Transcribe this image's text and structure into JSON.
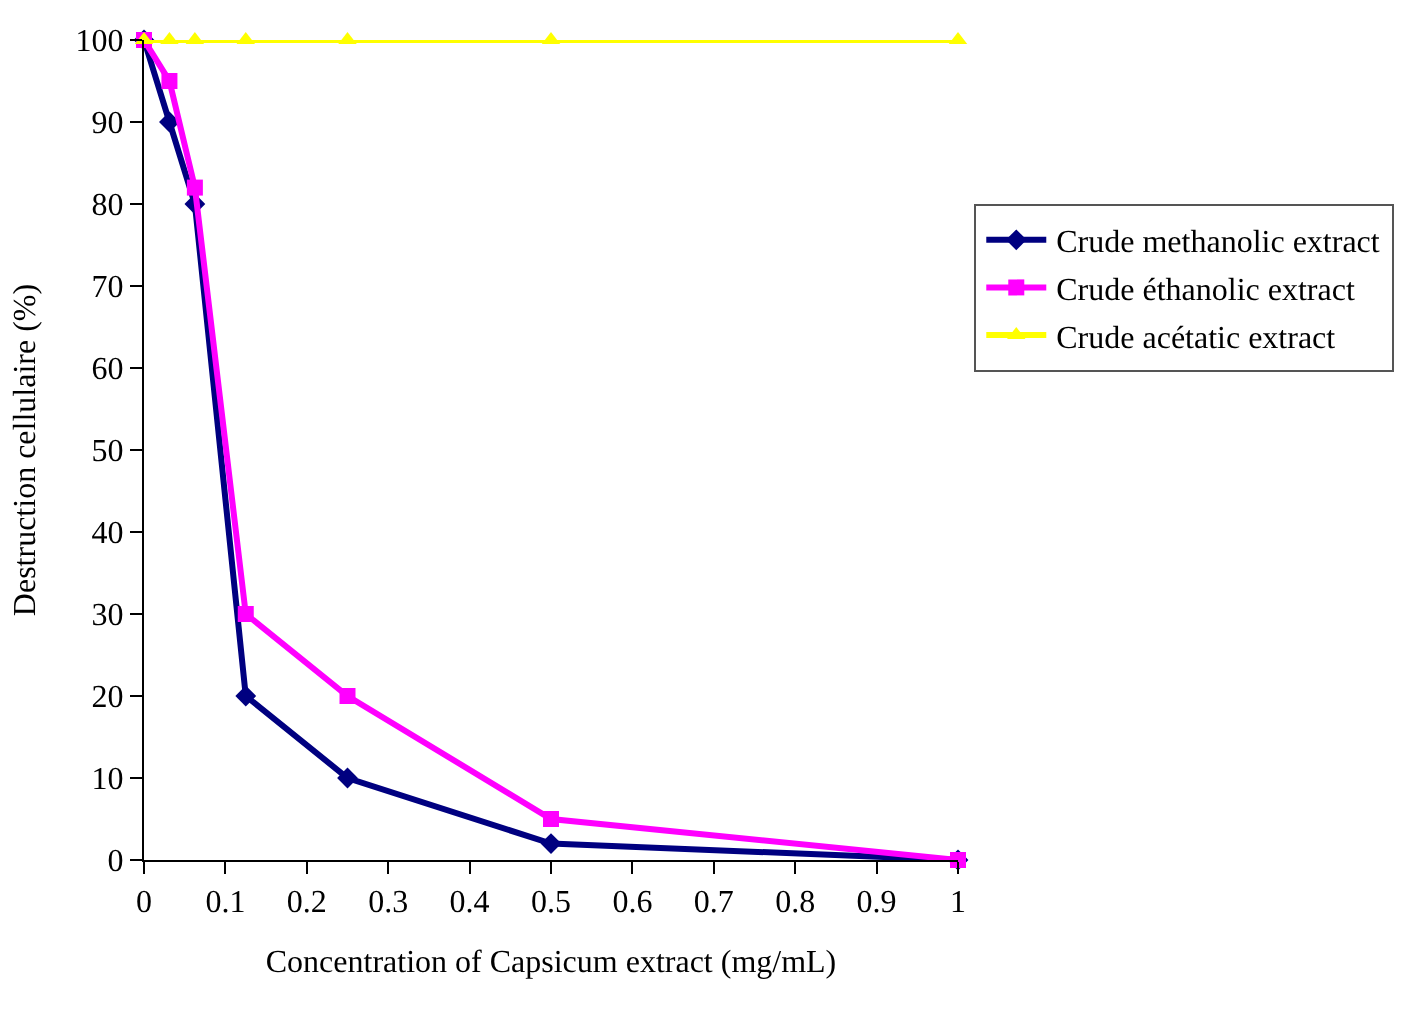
{
  "chart_data": {
    "type": "line",
    "xlabel": "Concentration of Capsicum extract (mg/mL)",
    "ylabel": "Destruction cellulaire (%)",
    "x": [
      0,
      0.03125,
      0.0625,
      0.125,
      0.25,
      0.5,
      1
    ],
    "series": [
      {
        "name": "Crude methanolic extract",
        "color": "#000080",
        "marker": "diamond",
        "values": [
          100,
          90,
          80,
          20,
          10,
          2,
          0
        ]
      },
      {
        "name": "Crude éthanolic extract",
        "color": "#ff00ff",
        "marker": "square",
        "values": [
          100,
          95,
          82,
          30,
          20,
          5,
          0
        ]
      },
      {
        "name": "Crude acétatic extract",
        "color": "#ffff00",
        "marker": "triangle",
        "values": [
          100,
          100,
          100,
          100,
          100,
          100,
          100
        ]
      }
    ],
    "xlim": [
      0,
      1
    ],
    "xticks": [
      0,
      0.1,
      0.2,
      0.3,
      0.4,
      0.5,
      0.6,
      0.7,
      0.8,
      0.9,
      1
    ],
    "ylim": [
      0,
      100
    ],
    "yticks": [
      0,
      10,
      20,
      30,
      40,
      50,
      60,
      70,
      80,
      90,
      100
    ],
    "legend": "right",
    "line_style": "solid"
  }
}
